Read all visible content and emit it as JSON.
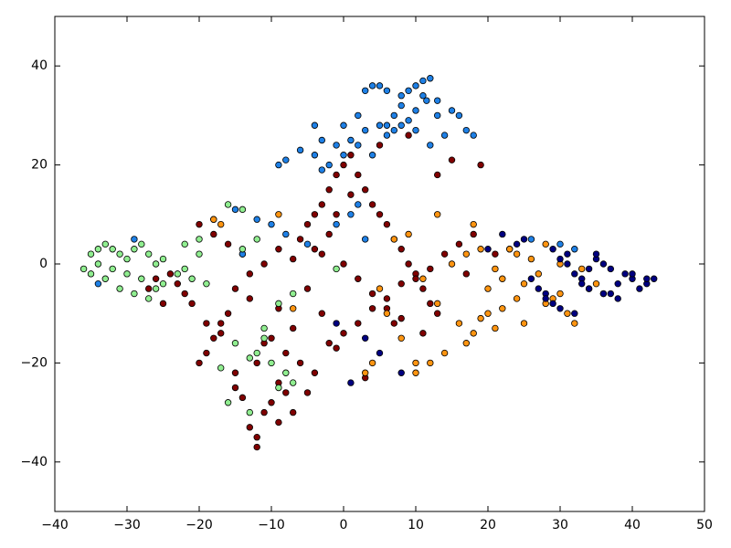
{
  "chart_data": {
    "type": "scatter",
    "xlim": [
      -40,
      50
    ],
    "ylim": [
      -50,
      50
    ],
    "xticks": [
      {
        "value": -40,
        "label": "−40"
      },
      {
        "value": -30,
        "label": "−30"
      },
      {
        "value": -20,
        "label": "−20"
      },
      {
        "value": -10,
        "label": "−10"
      },
      0,
      10,
      20,
      30,
      40,
      50
    ],
    "yticks": [
      {
        "value": -40,
        "label": "−40"
      },
      {
        "value": -20,
        "label": "−20"
      },
      0,
      20,
      40
    ],
    "marker_edge_color": "#000000",
    "series": [
      {
        "color": "#800000",
        "x": [
          -12,
          -13,
          -11,
          -10,
          -9,
          -14,
          -15,
          -12,
          -8,
          -7,
          -16,
          -17,
          -18,
          -19,
          -20,
          -21,
          -15,
          -13,
          -11,
          -9,
          -6,
          -5,
          -4,
          -3,
          -2,
          -1,
          0,
          1,
          2,
          3,
          4,
          5,
          6,
          7,
          8,
          9,
          10,
          11,
          12,
          13,
          -22,
          -23,
          -24,
          -25,
          -26,
          -27,
          -20,
          -18,
          -16,
          -14,
          -10,
          -8,
          -6,
          -4,
          -2,
          0,
          2,
          4,
          6,
          8,
          10,
          12,
          14,
          16,
          18,
          -12,
          -9,
          -5,
          -1,
          3,
          7,
          11,
          15,
          19,
          21,
          23,
          -3,
          -7,
          -11,
          -15,
          0,
          2,
          4,
          -2,
          -4,
          6,
          8,
          1,
          -1,
          -3,
          5,
          9,
          13,
          17,
          -19,
          -17,
          -13,
          -7,
          -5,
          -9
        ],
        "values": [
          -35,
          -33,
          -30,
          -28,
          -32,
          -27,
          -25,
          -37,
          -26,
          -30,
          -10,
          -12,
          -15,
          -18,
          -20,
          -8,
          -5,
          -2,
          0,
          3,
          5,
          8,
          10,
          12,
          15,
          18,
          20,
          22,
          18,
          15,
          12,
          10,
          8,
          5,
          3,
          0,
          -2,
          -5,
          -8,
          -10,
          -6,
          -4,
          -2,
          -8,
          -3,
          -5,
          8,
          6,
          4,
          2,
          -15,
          -18,
          -20,
          -22,
          -16,
          -14,
          -12,
          -9,
          -7,
          -4,
          -3,
          -1,
          2,
          4,
          6,
          -20,
          -24,
          -26,
          -17,
          -23,
          -12,
          -14,
          21,
          20,
          2,
          3,
          -10,
          -13,
          -16,
          -22,
          0,
          -3,
          -6,
          6,
          3,
          -9,
          -11,
          14,
          10,
          2,
          24,
          26,
          18,
          -2,
          -12,
          -14,
          -7,
          1,
          -5,
          -9
        ]
      },
      {
        "color": "#1e80e6",
        "x": [
          4,
          5,
          6,
          8,
          9,
          10,
          11,
          12,
          11.5,
          13,
          10,
          8,
          7,
          6,
          3,
          2,
          1,
          0,
          -1,
          -3,
          -4,
          -2,
          0,
          2,
          4,
          6,
          8,
          10,
          12,
          14,
          16,
          17,
          18,
          15,
          13,
          11,
          9,
          7,
          5,
          3,
          -9,
          -8,
          -6,
          -4,
          -3,
          -15,
          -12,
          -10,
          -14,
          -8,
          -5,
          -1,
          1,
          3,
          30,
          32,
          26,
          2,
          -34,
          -29
        ],
        "values": [
          36,
          36,
          35,
          34,
          35,
          36,
          37,
          37.5,
          33,
          30,
          31,
          32,
          30,
          28,
          27,
          30,
          25,
          28,
          24,
          25,
          28,
          20,
          22,
          24,
          22,
          26,
          28,
          27,
          24,
          26,
          30,
          27,
          26,
          31,
          33,
          34,
          29,
          27,
          28,
          35,
          20,
          21,
          23,
          22,
          19,
          11,
          9,
          8,
          2,
          6,
          4,
          8,
          10,
          5,
          4,
          3,
          5,
          12,
          -4,
          5
        ]
      },
      {
        "color": "#90ee90",
        "x": [
          -36,
          -35,
          -34,
          -33,
          -32,
          -31,
          -30,
          -29,
          -28,
          -27,
          -26,
          -25,
          -35,
          -33,
          -31,
          -29,
          -27,
          -25,
          -23,
          -22,
          -21,
          -20,
          -19,
          -34,
          -32,
          -30,
          -28,
          -26,
          -22,
          -20,
          -18,
          -16,
          -14,
          -13,
          -12,
          -11,
          -10,
          -9,
          -8,
          -7,
          -15,
          -13,
          -11,
          -9,
          -7,
          -17,
          -16,
          -14,
          -12,
          -1
        ],
        "values": [
          -1,
          2,
          3,
          4,
          3,
          2,
          1,
          3,
          4,
          2,
          0,
          1,
          -2,
          -3,
          -5,
          -6,
          -7,
          -4,
          -2,
          -1,
          -3,
          2,
          -4,
          0,
          -1,
          -2,
          -3,
          -5,
          4,
          5,
          9,
          12,
          11,
          -30,
          -18,
          -15,
          -20,
          -25,
          -22,
          -24,
          -16,
          -19,
          -13,
          -8,
          -6,
          -21,
          -28,
          3,
          5,
          -1
        ]
      },
      {
        "color": "#ff9410",
        "x": [
          7,
          9,
          11,
          13,
          15,
          17,
          18,
          19,
          20,
          21,
          22,
          23,
          24,
          25,
          26,
          27,
          28,
          29,
          30,
          31,
          32,
          33,
          34,
          35,
          36,
          16,
          18,
          20,
          22,
          24,
          14,
          12,
          10,
          8,
          6,
          4,
          3,
          17,
          19,
          21,
          -18,
          -17,
          -9,
          -7,
          13,
          30,
          28,
          25,
          10,
          5
        ],
        "values": [
          5,
          6,
          -3,
          -8,
          0,
          2,
          8,
          3,
          -5,
          -1,
          -3,
          3,
          2,
          -4,
          1,
          -2,
          4,
          -7,
          -6,
          -10,
          -12,
          -1,
          -5,
          -4,
          -6,
          -12,
          -14,
          -10,
          -9,
          -7,
          -18,
          -20,
          -22,
          -15,
          -10,
          -20,
          -22,
          -16,
          -11,
          -13,
          9,
          8,
          10,
          -9,
          10,
          0,
          -8,
          -12,
          -20,
          -5
        ]
      },
      {
        "color": "#000080",
        "x": [
          43,
          42,
          41,
          40,
          39,
          38,
          37,
          36,
          35,
          34,
          33,
          32,
          31,
          30,
          29,
          28,
          27,
          26,
          25,
          24,
          22,
          20,
          38,
          36,
          34,
          32,
          30,
          28,
          40,
          42,
          31,
          29,
          35,
          33,
          37,
          1,
          5,
          -1,
          3,
          8
        ],
        "values": [
          -3,
          -4,
          -5,
          -3,
          -2,
          -4,
          -1,
          0,
          1,
          -1,
          -3,
          -2,
          0,
          1,
          -8,
          -6,
          -5,
          -3,
          5,
          4,
          6,
          3,
          -7,
          -6,
          -5,
          -10,
          -9,
          -7,
          -2,
          -3,
          2,
          3,
          2,
          -4,
          -6,
          -24,
          -18,
          -12,
          -15,
          -22
        ]
      }
    ]
  }
}
